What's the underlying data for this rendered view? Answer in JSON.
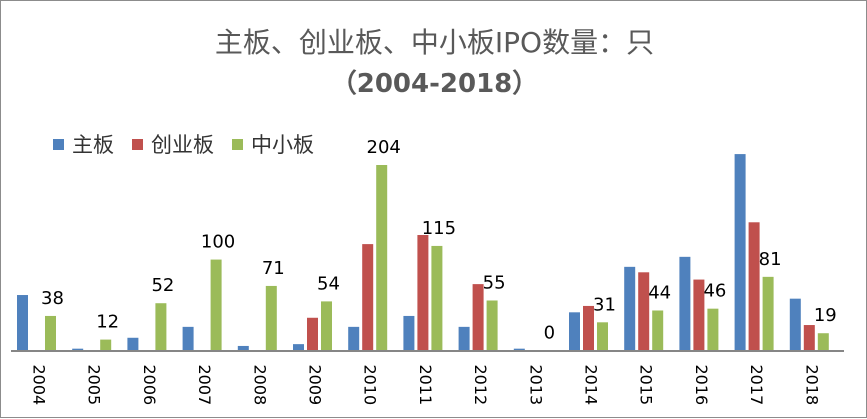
{
  "chart_data": {
    "type": "bar",
    "title": "主板、创业板、中小板IPO数量：只",
    "subtitle": "（2004-2018）",
    "categories": [
      "2004",
      "2005",
      "2006",
      "2007",
      "2008",
      "2009",
      "2010",
      "2011",
      "2012",
      "2013",
      "2014",
      "2015",
      "2016",
      "2017",
      "2018"
    ],
    "series": [
      {
        "name": "主板",
        "color": "#4f81bd",
        "values": [
          61,
          2,
          14,
          26,
          5,
          7,
          26,
          38,
          26,
          2,
          42,
          92,
          103,
          216,
          57
        ]
      },
      {
        "name": "创业板",
        "color": "#c0504d",
        "values": [
          0,
          0,
          0,
          0,
          0,
          36,
          117,
          127,
          73,
          0,
          49,
          86,
          78,
          141,
          28
        ]
      },
      {
        "name": "中小板",
        "color": "#9bbb59",
        "values": [
          38,
          12,
          52,
          100,
          71,
          54,
          204,
          115,
          55,
          0,
          31,
          44,
          46,
          81,
          19
        ],
        "data_labels": [
          "38",
          "12",
          "52",
          "100",
          "71",
          "54",
          "204",
          "115",
          "55",
          "0",
          "31",
          "44",
          "46",
          "81",
          "19"
        ]
      }
    ],
    "ylim": [
      0,
      220
    ],
    "grid": false,
    "legend": "top-left",
    "xlabel": "",
    "ylabel": ""
  }
}
